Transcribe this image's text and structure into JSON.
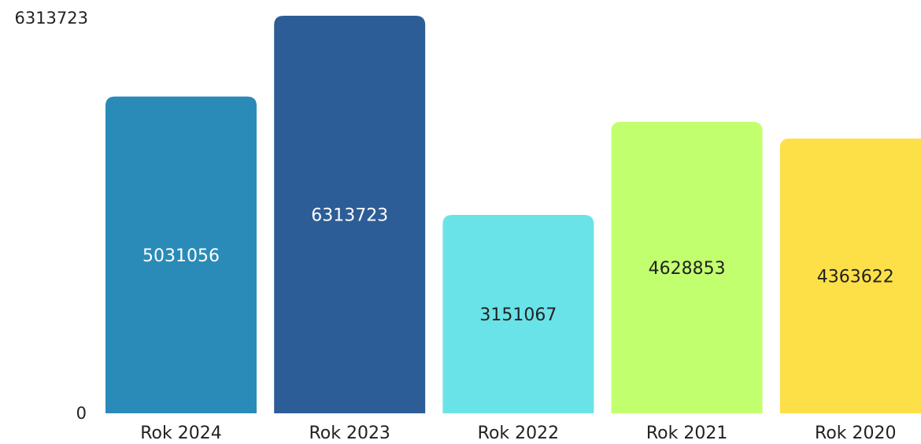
{
  "chart_data": {
    "type": "bar",
    "title": "",
    "xlabel": "",
    "ylabel": "",
    "categories": [
      "Rok 2024",
      "Rok 2023",
      "Rok 2022",
      "Rok 2021",
      "Rok 2020"
    ],
    "values": [
      5031056,
      6313723,
      3151067,
      4628853,
      4363622
    ],
    "value_labels": [
      "5031056",
      "6313723",
      "3151067",
      "4628853",
      "4363622"
    ],
    "colors": [
      "#2b8bb8",
      "#2d5d96",
      "#6ae3e8",
      "#c2ff6e",
      "#fde047"
    ],
    "label_colors": [
      "#ffffff",
      "#ffffff",
      "#222222",
      "#222222",
      "#222222"
    ],
    "ylim": [
      0,
      6313723
    ],
    "y_tick_labels": [
      "0",
      "6313723"
    ],
    "grid": false,
    "legend": "none"
  }
}
